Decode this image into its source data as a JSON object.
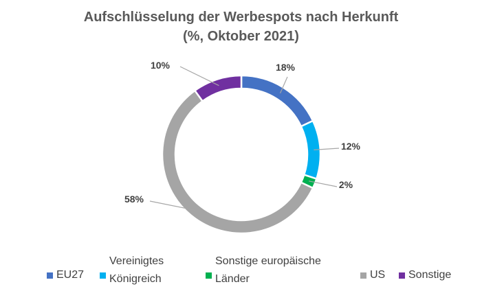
{
  "chart_data": {
    "type": "pie",
    "variant": "donut",
    "title": "Aufschlüsselung der Werbespots nach Herkunft",
    "subtitle": "(%, Oktober 2021)",
    "slices": [
      {
        "name": "EU27",
        "value": 18,
        "label": "18%",
        "color": "#4472C4"
      },
      {
        "name": "Vereinigtes Königreich",
        "value": 12,
        "label": "12%",
        "color": "#00B0F0"
      },
      {
        "name": "Sonstige europäische Länder",
        "value": 2,
        "label": "2%",
        "color": "#00B050"
      },
      {
        "name": "US",
        "value": 58,
        "label": "58%",
        "color": "#A5A5A5"
      },
      {
        "name": "Sonstige",
        "value": 10,
        "label": "10%",
        "color": "#7030A0"
      }
    ],
    "legend_placement": "bottom"
  }
}
